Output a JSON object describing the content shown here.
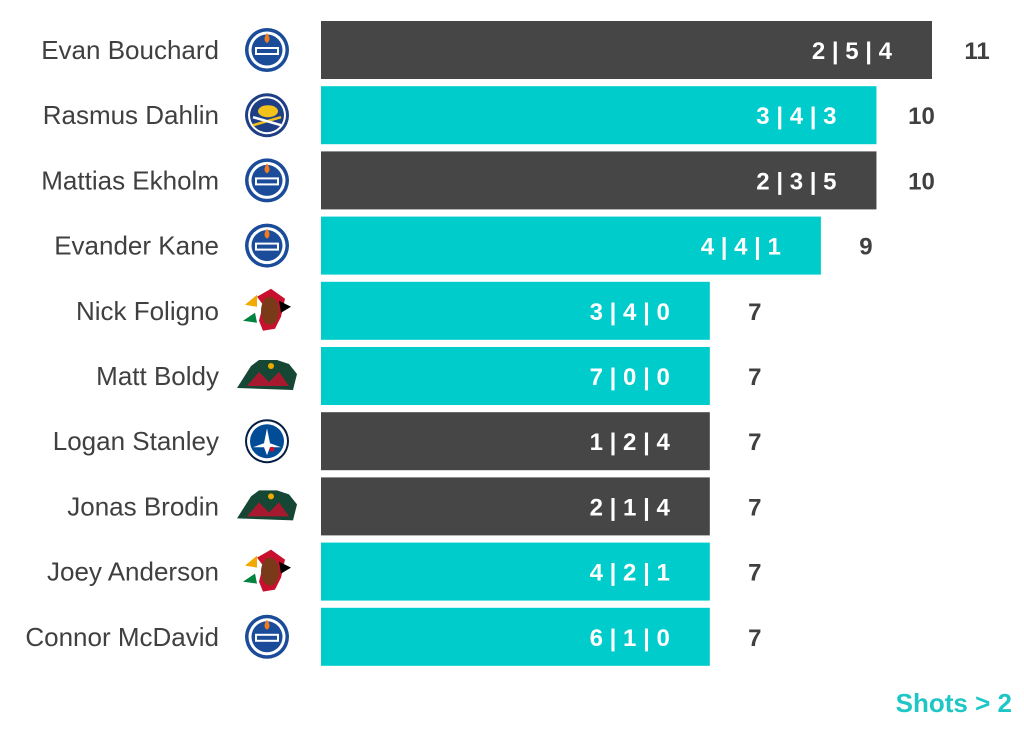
{
  "chart_data": {
    "type": "bar",
    "orientation": "horizontal",
    "categories": [
      "Evan Bouchard",
      "Rasmus Dahlin",
      "Mattias Ekholm",
      "Evander Kane",
      "Nick Foligno",
      "Matt Boldy",
      "Logan Stanley",
      "Jonas Brodin",
      "Joey Anderson",
      "Connor McDavid"
    ],
    "values": [
      11,
      10,
      10,
      9,
      7,
      7,
      7,
      7,
      7,
      7
    ],
    "breakdowns": [
      "2 | 5 | 4",
      "3 | 4 | 3",
      "2 | 3 | 5",
      "4 | 4 | 1",
      "3 | 4 | 0",
      "7 | 0 | 0",
      "1 | 2 | 4",
      "2 | 1 | 4",
      "4 | 2 | 1",
      "6 | 1 | 0"
    ],
    "teams": [
      "oilers-logo-icon",
      "sabres-logo-icon",
      "oilers-logo-icon",
      "oilers-logo-icon",
      "blackhawks-logo-icon",
      "wild-logo-icon",
      "jets-logo-icon",
      "wild-logo-icon",
      "blackhawks-logo-icon",
      "oilers-logo-icon"
    ],
    "bar_colors": [
      "#464646",
      "#00cccc",
      "#464646",
      "#00cccc",
      "#00cccc",
      "#00cccc",
      "#464646",
      "#464646",
      "#00cccc",
      "#00cccc"
    ],
    "xlim": [
      0,
      11
    ],
    "grid": false,
    "legend": "none",
    "footnote": "Shots > 2"
  },
  "colors": {
    "dark_bar": "#464646",
    "teal_bar": "#00cccc",
    "text": "#404040",
    "footnote": "#1fc6c6"
  }
}
